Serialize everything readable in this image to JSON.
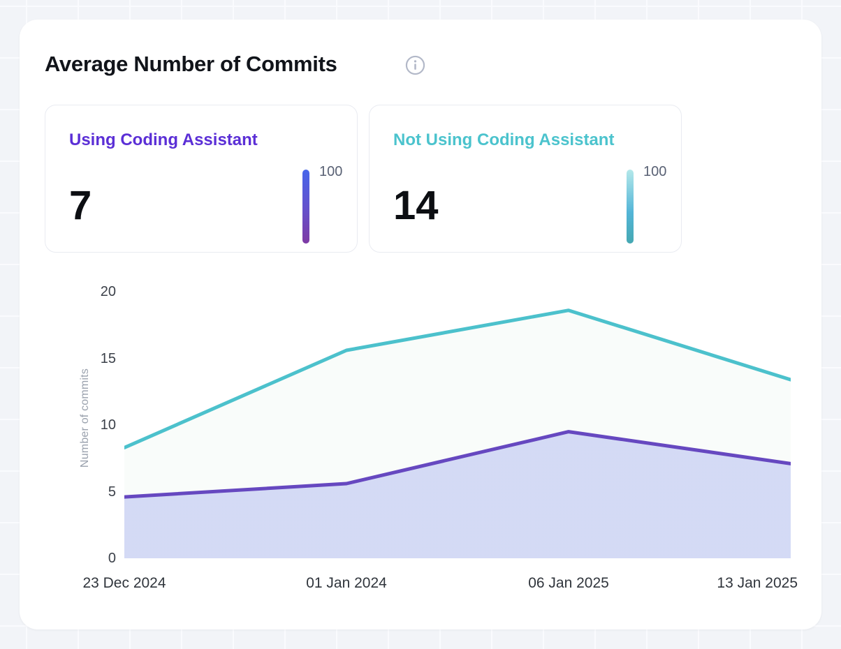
{
  "card": {
    "title": "Average Number of Commits",
    "info_icon_glyph": "i",
    "info_icon_color": "#b2b8c8"
  },
  "stats": [
    {
      "label": "Using Coding Assistant",
      "value": "7",
      "scale_max": "100",
      "label_color": "#5b2fd6",
      "bar_gradient": [
        "#4766ea",
        "#6452cd 52%",
        "#7e3aa4"
      ]
    },
    {
      "label": "Not Using Coding Assistant",
      "value": "14",
      "scale_max": "100",
      "label_color": "#4bc3cd",
      "bar_gradient": [
        "#b4e8ea",
        "#53b5d7 58%",
        "#45a8b2"
      ]
    }
  ],
  "chart_data": {
    "type": "area",
    "title": "Average Number of Commits",
    "x": [
      "23 Dec 2024",
      "01 Jan 2024",
      "06 Jan 2025",
      "13 Jan 2025"
    ],
    "series": [
      {
        "name": "Not Using Coding Assistant",
        "color": "#4cc1cc",
        "fill_from": "rgba(182,217,196,0.95)",
        "fill_to": "rgba(244,249,245,0.55)",
        "values": [
          8.3,
          15.6,
          18.6,
          13.4
        ]
      },
      {
        "name": "Using Coding Assistant",
        "color": "#6648c0",
        "fill_from": "rgba(130,112,220,0.16)",
        "fill_to": "rgba(125,140,235,0.30)",
        "values": [
          4.6,
          5.6,
          9.5,
          7.1
        ]
      }
    ],
    "xlabel": "",
    "ylabel": "Number of commits",
    "yticks": [
      0,
      5,
      10,
      15,
      20
    ],
    "ylim": [
      0,
      20
    ],
    "grid": false,
    "legend": false
  }
}
